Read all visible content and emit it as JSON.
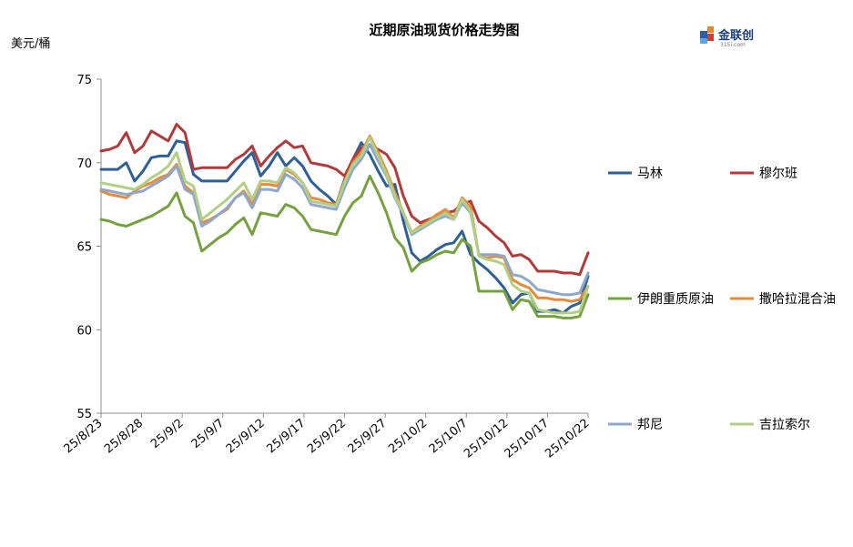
{
  "chart_data": {
    "type": "line",
    "title": "近期原油现货价格走势图",
    "ylabel": "美元/桶",
    "ylim": [
      55,
      75
    ],
    "yticks": [
      55,
      60,
      65,
      70,
      75
    ],
    "xtick_labels": [
      "25/8/23",
      "25/8/28",
      "25/9/2",
      "25/9/7",
      "25/9/12",
      "25/9/17",
      "25/9/22",
      "25/9/27",
      "25/10/2",
      "25/10/7",
      "25/10/12",
      "25/10/17",
      "25/10/22"
    ],
    "legend_position": "right",
    "series": [
      {
        "name": "马林",
        "color": "#2f5f97",
        "values": [
          69.6,
          69.6,
          69.6,
          70.0,
          68.9,
          69.5,
          70.3,
          70.4,
          70.4,
          71.3,
          71.2,
          69.3,
          68.9,
          68.9,
          68.9,
          68.9,
          69.5,
          70.1,
          70.6,
          69.2,
          69.8,
          70.6,
          69.8,
          70.3,
          69.8,
          68.9,
          68.4,
          68.0,
          67.5,
          69.0,
          70.2,
          71.2,
          70.5,
          69.5,
          68.6,
          68.7,
          66.5,
          64.6,
          64.1,
          64.4,
          64.8,
          65.1,
          65.2,
          65.9,
          64.5,
          64.0,
          63.6,
          63.1,
          62.5,
          61.6,
          62.1,
          62.2,
          61.1,
          61.1,
          61.2,
          61.0,
          61.4,
          61.6,
          63.2
        ]
      },
      {
        "name": "穆尔班",
        "color": "#b23a3a",
        "values": [
          70.7,
          70.8,
          71.0,
          71.8,
          70.6,
          71.0,
          71.9,
          71.6,
          71.3,
          72.3,
          71.8,
          69.6,
          69.7,
          69.7,
          69.7,
          69.7,
          70.2,
          70.5,
          71.0,
          69.8,
          70.4,
          70.9,
          71.3,
          70.9,
          71.0,
          70.0,
          69.9,
          69.8,
          69.6,
          69.2,
          70.2,
          70.9,
          71.0,
          70.8,
          70.5,
          69.7,
          68.0,
          66.8,
          66.4,
          66.6,
          66.8,
          67.0,
          67.1,
          67.5,
          67.7,
          66.5,
          66.1,
          65.6,
          65.2,
          64.4,
          64.5,
          64.2,
          63.5,
          63.5,
          63.5,
          63.4,
          63.4,
          63.3,
          64.6
        ]
      },
      {
        "name": "伊朗重质原油",
        "color": "#75a140",
        "values": [
          66.6,
          66.5,
          66.3,
          66.2,
          66.4,
          66.6,
          66.8,
          67.1,
          67.4,
          68.2,
          66.8,
          66.4,
          64.7,
          65.1,
          65.5,
          65.8,
          66.3,
          66.7,
          65.7,
          67.0,
          66.9,
          66.8,
          67.5,
          67.3,
          66.8,
          66.0,
          65.9,
          65.8,
          65.7,
          66.8,
          67.6,
          68.0,
          69.2,
          68.2,
          67.0,
          65.5,
          64.9,
          63.5,
          64.0,
          64.2,
          64.5,
          64.7,
          64.6,
          65.4,
          65.0,
          62.3,
          62.3,
          62.3,
          62.3,
          61.2,
          61.8,
          61.7,
          60.8,
          60.8,
          60.8,
          60.7,
          60.7,
          60.8,
          62.1
        ]
      },
      {
        "name": "撒哈拉混合油",
        "color": "#e68a3c",
        "values": [
          68.3,
          68.1,
          68.0,
          67.9,
          68.3,
          68.6,
          68.8,
          69.1,
          69.3,
          69.9,
          68.6,
          68.2,
          66.4,
          66.6,
          66.9,
          67.2,
          67.9,
          68.3,
          67.5,
          68.7,
          68.7,
          68.6,
          69.6,
          69.3,
          68.8,
          67.9,
          67.8,
          67.6,
          67.5,
          68.9,
          70.0,
          70.6,
          71.6,
          70.6,
          69.5,
          68.2,
          67.0,
          65.8,
          66.2,
          66.5,
          66.9,
          67.2,
          66.7,
          67.9,
          67.4,
          64.4,
          64.3,
          64.4,
          64.3,
          63.0,
          62.7,
          62.5,
          61.9,
          61.9,
          61.8,
          61.8,
          61.7,
          61.8,
          62.6
        ]
      },
      {
        "name": "邦尼",
        "color": "#8ea8cc",
        "values": [
          68.4,
          68.3,
          68.2,
          68.1,
          68.2,
          68.3,
          68.6,
          68.9,
          69.2,
          69.8,
          68.4,
          68.1,
          66.2,
          66.5,
          66.9,
          67.3,
          67.9,
          68.2,
          67.3,
          68.4,
          68.4,
          68.3,
          69.3,
          69.0,
          68.5,
          67.5,
          67.4,
          67.3,
          67.2,
          68.5,
          69.6,
          70.2,
          71.1,
          70.1,
          69.2,
          67.9,
          66.9,
          65.7,
          66.0,
          66.3,
          66.6,
          66.8,
          66.6,
          67.6,
          67.0,
          64.5,
          64.5,
          64.5,
          64.4,
          63.3,
          63.2,
          62.9,
          62.4,
          62.3,
          62.2,
          62.1,
          62.1,
          62.2,
          63.4
        ]
      },
      {
        "name": "吉拉索尔",
        "color": "#b3cf85",
        "values": [
          68.8,
          68.7,
          68.6,
          68.5,
          68.4,
          68.7,
          69.1,
          69.4,
          69.8,
          70.6,
          68.9,
          68.6,
          66.6,
          67.0,
          67.4,
          67.8,
          68.3,
          68.8,
          67.8,
          68.9,
          68.9,
          68.8,
          69.7,
          69.4,
          68.8,
          67.7,
          67.6,
          67.5,
          67.4,
          68.8,
          69.9,
          70.4,
          71.5,
          70.4,
          69.3,
          68.0,
          67.0,
          65.8,
          66.1,
          66.4,
          66.7,
          67.0,
          66.6,
          67.8,
          67.1,
          64.4,
          64.2,
          64.1,
          63.9,
          62.7,
          62.3,
          62.2,
          61.2,
          61.1,
          61.0,
          61.0,
          61.0,
          61.1,
          62.6
        ]
      }
    ]
  },
  "logo": {
    "name": "金联创",
    "sub": "315i.com"
  }
}
